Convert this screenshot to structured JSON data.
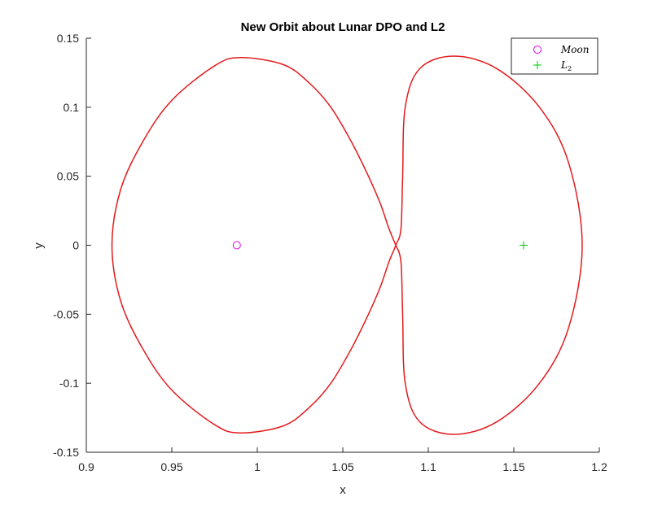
{
  "chart_data": {
    "type": "line",
    "title": "New Orbit about Lunar DPO and L2",
    "xlabel": "x",
    "ylabel": "y",
    "xlim": [
      0.9,
      1.2
    ],
    "ylim": [
      -0.15,
      0.15
    ],
    "xticks": [
      0.9,
      0.95,
      1.0,
      1.05,
      1.1,
      1.15,
      1.2
    ],
    "xtick_labels": [
      "0.9",
      "0.95",
      "1",
      "1.05",
      "1.1",
      "1.15",
      "1.2"
    ],
    "yticks": [
      -0.15,
      -0.1,
      -0.05,
      0,
      0.05,
      0.1,
      0.15
    ],
    "ytick_labels": [
      "-0.15",
      "-0.1",
      "-0.05",
      "0",
      "0.05",
      "0.1",
      "0.15"
    ],
    "grid": false,
    "legend_position": "top-right",
    "series": [
      {
        "type": "line",
        "color": "#e31a1c",
        "points": [
          [
            1.081,
            0.0
          ],
          [
            1.077,
            0.012
          ],
          [
            1.072,
            0.03
          ],
          [
            1.065,
            0.05
          ],
          [
            1.055,
            0.075
          ],
          [
            1.043,
            0.1
          ],
          [
            1.03,
            0.118
          ],
          [
            1.015,
            0.131
          ],
          [
            0.99,
            0.136
          ],
          [
            0.975,
            0.13
          ],
          [
            0.95,
            0.105
          ],
          [
            0.933,
            0.075
          ],
          [
            0.92,
            0.04
          ],
          [
            0.915,
            0.0
          ],
          [
            0.92,
            -0.04
          ],
          [
            0.933,
            -0.075
          ],
          [
            0.95,
            -0.105
          ],
          [
            0.975,
            -0.13
          ],
          [
            0.99,
            -0.136
          ],
          [
            1.015,
            -0.131
          ],
          [
            1.03,
            -0.118
          ],
          [
            1.043,
            -0.1
          ],
          [
            1.055,
            -0.075
          ],
          [
            1.065,
            -0.05
          ],
          [
            1.072,
            -0.03
          ],
          [
            1.077,
            -0.012
          ],
          [
            1.081,
            0.0
          ],
          [
            1.084,
            0.012
          ],
          [
            1.085,
            0.05
          ],
          [
            1.0865,
            0.1
          ],
          [
            1.095,
            0.128
          ],
          [
            1.115,
            0.137
          ],
          [
            1.14,
            0.128
          ],
          [
            1.165,
            0.1
          ],
          [
            1.182,
            0.06
          ],
          [
            1.19,
            0.0
          ],
          [
            1.182,
            -0.06
          ],
          [
            1.165,
            -0.1
          ],
          [
            1.14,
            -0.128
          ],
          [
            1.115,
            -0.137
          ],
          [
            1.095,
            -0.128
          ],
          [
            1.0865,
            -0.1
          ],
          [
            1.085,
            -0.05
          ],
          [
            1.084,
            -0.012
          ],
          [
            1.081,
            0.0
          ]
        ]
      },
      {
        "name": "Moon",
        "type": "scatter",
        "marker": "circle",
        "color": "#e600e6",
        "x": [
          0.988
        ],
        "y": [
          0.0
        ]
      },
      {
        "name": "L",
        "name_subscript": "2",
        "type": "scatter",
        "marker": "plus",
        "color": "#00c800",
        "x": [
          1.1557
        ],
        "y": [
          0.0
        ]
      }
    ]
  }
}
